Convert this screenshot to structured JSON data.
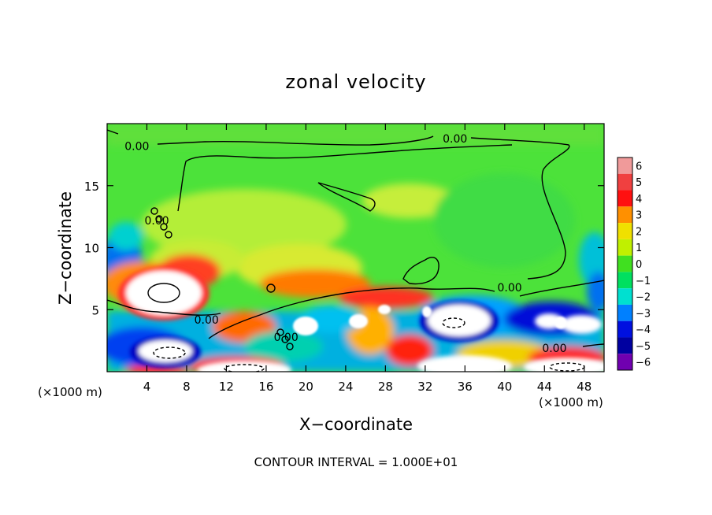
{
  "chart_data": {
    "type": "heatmap",
    "title": "zonal velocity",
    "xlabel": "X−coordinate",
    "ylabel": "Z−coordinate",
    "x_unit_left": "(×1000 m)",
    "x_unit_right": "(×1000 m)",
    "xlim": [
      0,
      50
    ],
    "ylim": [
      0,
      20
    ],
    "x_ticks": [
      4,
      8,
      12,
      16,
      20,
      24,
      28,
      32,
      36,
      40,
      44,
      48
    ],
    "x_tick_labels": [
      "4",
      "8",
      "12",
      "16",
      "20",
      "24",
      "28",
      "32",
      "36",
      "40",
      "44",
      "48"
    ],
    "y_ticks": [
      5,
      10,
      15
    ],
    "y_tick_labels": [
      "5",
      "10",
      "15"
    ],
    "colorbar": {
      "min": -6,
      "max": 6,
      "ticks": [
        6,
        5,
        4,
        3,
        2,
        1,
        0,
        -1,
        -2,
        -3,
        -4,
        -5,
        -6
      ],
      "tick_labels": [
        "6",
        "5",
        "4",
        "3",
        "2",
        "1",
        "0",
        "−1",
        "−2",
        "−3",
        "−4",
        "−5",
        "−6"
      ],
      "colors": [
        "#f09a9a",
        "#f04040",
        "#ff1010",
        "#ff9000",
        "#f0e000",
        "#c0f000",
        "#40e020",
        "#00e060",
        "#00e0d0",
        "#0080ff",
        "#0010e0",
        "#0000a0",
        "#7000b0"
      ]
    },
    "contour_labels": [
      {
        "text": "0.00",
        "x": 3,
        "y": 18.2
      },
      {
        "text": "0.00",
        "x": 35,
        "y": 18.8
      },
      {
        "text": "0.00",
        "x": 5,
        "y": 12.2
      },
      {
        "text": "0.00",
        "x": 40.5,
        "y": 6.8
      },
      {
        "text": "0.00",
        "x": 10,
        "y": 4.2
      },
      {
        "text": "0.00",
        "x": 45,
        "y": 1.9
      },
      {
        "text": "0.00",
        "x": 18,
        "y": 2.8
      }
    ],
    "features": [
      {
        "value": 6,
        "x": 6,
        "y": 6.3,
        "rx": 3.5,
        "ry": 2.5
      },
      {
        "value": -6,
        "x": 6.5,
        "y": 1.5,
        "rx": 3,
        "ry": 1.2
      },
      {
        "value": -6,
        "x": 14,
        "y": 0.2,
        "rx": 4,
        "ry": 0.6
      },
      {
        "value": -6,
        "x": 20,
        "y": 3.8,
        "rx": 1.5,
        "ry": 1.1
      },
      {
        "value": 6,
        "x": 25.5,
        "y": 4.2,
        "rx": 1.5,
        "ry": 1.1
      },
      {
        "value": -6,
        "x": 28,
        "y": 5.2,
        "rx": 0.8,
        "ry": 0.6
      },
      {
        "value": 6,
        "x": 31.5,
        "y": 4.6,
        "rx": 0.8,
        "ry": 0.8
      },
      {
        "value": -6,
        "x": 35,
        "y": 3.6,
        "rx": 3,
        "ry": 1.5
      },
      {
        "value": -6,
        "x": 36,
        "y": 0.3,
        "rx": 4,
        "ry": 0.8
      },
      {
        "value": -6,
        "x": 43.5,
        "y": 3.8,
        "rx": 1,
        "ry": 0.8
      },
      {
        "value": -6,
        "x": 46.8,
        "y": 3.3,
        "rx": 2,
        "ry": 1
      },
      {
        "value": 6,
        "x": 46,
        "y": 0.5,
        "rx": 3.5,
        "ry": 0.8
      }
    ],
    "footer": "CONTOUR INTERVAL = 1.000E+01"
  }
}
